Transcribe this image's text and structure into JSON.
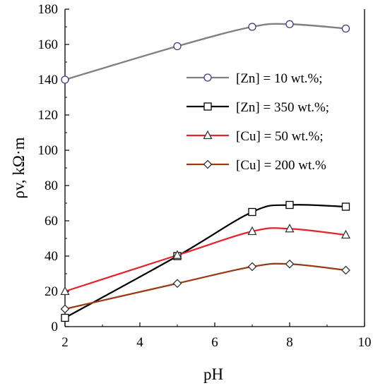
{
  "chart_data": {
    "type": "line",
    "xlabel": "pH",
    "ylabel": "ρv, kΩ·m",
    "xlim": [
      2,
      10
    ],
    "ylim": [
      0,
      180
    ],
    "xticks": [
      2,
      4,
      6,
      8,
      10
    ],
    "yticks": [
      0,
      20,
      40,
      60,
      80,
      100,
      120,
      140,
      160,
      180
    ],
    "grid": false,
    "legend_position": "right",
    "series": [
      {
        "name": "[Zn] = 10 wt.%;",
        "color": "#808080",
        "marker": "circle",
        "x": [
          2,
          5,
          7,
          8,
          9.5
        ],
        "y": [
          140,
          159,
          170,
          171.5,
          169
        ]
      },
      {
        "name": "[Zn] = 350 wt.%;",
        "color": "#000000",
        "marker": "square",
        "x": [
          2,
          5,
          7,
          8,
          9.5
        ],
        "y": [
          5,
          40,
          65,
          69,
          68
        ]
      },
      {
        "name": "[Cu] = 50 wt.%;",
        "color": "#e8202a",
        "marker": "triangle",
        "x": [
          2,
          5,
          7,
          8,
          9.5
        ],
        "y": [
          20,
          40.5,
          54,
          55.5,
          52
        ]
      },
      {
        "name": "[Cu] = 200 wt.%",
        "color": "#9a3a12",
        "marker": "diamond",
        "x": [
          2,
          5,
          7,
          8,
          9.5
        ],
        "y": [
          10,
          24.5,
          34,
          35.5,
          32
        ]
      }
    ]
  }
}
